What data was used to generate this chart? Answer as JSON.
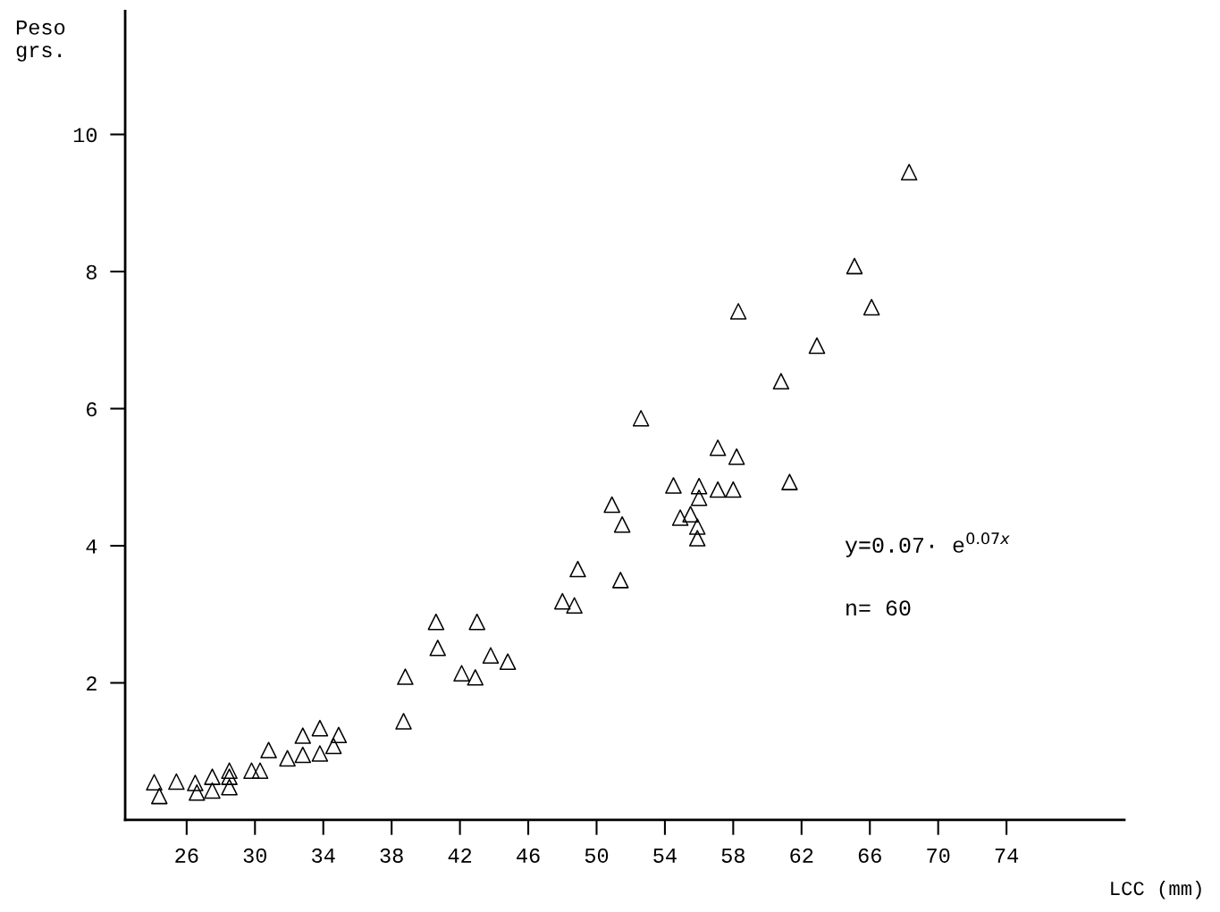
{
  "chart_data": {
    "type": "scatter",
    "xlabel": "LCC (mm)",
    "ylabel": "Peso\ngrs.",
    "x": [
      24.1,
      24.4,
      25.4,
      26.5,
      26.6,
      27.5,
      27.5,
      28.5,
      28.5,
      28.5,
      29.8,
      30.3,
      30.8,
      31.9,
      32.8,
      32.8,
      33.8,
      33.8,
      34.6,
      34.9,
      38.7,
      38.8,
      40.6,
      40.7,
      42.1,
      42.9,
      43.0,
      43.8,
      44.8,
      48.0,
      48.7,
      48.9,
      50.9,
      51.5,
      51.4,
      52.6,
      54.5,
      54.9,
      55.5,
      56.0,
      56.0,
      55.9,
      55.9,
      57.1,
      57.1,
      58.0,
      58.2,
      58.3,
      60.8,
      61.3,
      62.9,
      65.1,
      66.1,
      68.3
    ],
    "values": [
      0.55,
      0.35,
      0.56,
      0.54,
      0.4,
      0.63,
      0.43,
      0.72,
      0.63,
      0.48,
      0.72,
      0.72,
      1.02,
      0.9,
      1.23,
      0.95,
      1.34,
      0.97,
      1.08,
      1.24,
      1.44,
      2.09,
      2.89,
      2.51,
      2.14,
      2.08,
      2.89,
      2.4,
      2.31,
      3.19,
      3.13,
      3.66,
      4.6,
      4.31,
      3.5,
      5.86,
      4.88,
      4.41,
      4.46,
      4.87,
      4.7,
      4.28,
      4.11,
      5.43,
      4.82,
      4.82,
      5.3,
      7.42,
      6.4,
      4.93,
      6.92,
      8.08,
      7.48,
      9.45
    ],
    "color": "#000000",
    "marker": "triangle",
    "xlim": [
      22.4,
      80.9
    ],
    "xticks": [
      26,
      30,
      34,
      38,
      42,
      46,
      50,
      54,
      58,
      62,
      66,
      70,
      74
    ],
    "ylim": [
      0,
      11.8
    ],
    "yticks": [
      2,
      4,
      6,
      8,
      10
    ],
    "grid": false,
    "legend": false,
    "annotations": [
      "y=0.07· e$^{0.07x}$",
      "n= 60"
    ]
  }
}
